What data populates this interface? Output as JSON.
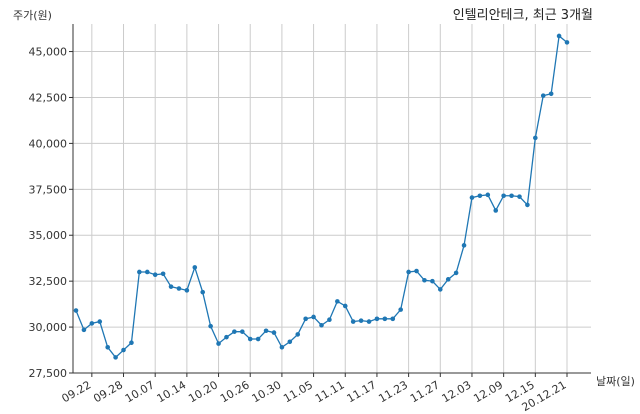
{
  "chart_data": {
    "type": "line",
    "title": "인텔리안테크, 최근 3개월",
    "ylabel": "주가(원)",
    "xlabel": "날짜(일)",
    "ylim": [
      27500,
      46500
    ],
    "yticks": [
      27500,
      30000,
      32500,
      35000,
      37500,
      40000,
      42500,
      45000
    ],
    "ytick_labels": [
      "27,500",
      "30,000",
      "32,500",
      "35,000",
      "37,500",
      "40,000",
      "42,500",
      "45,000"
    ],
    "xtick_labels": [
      "09.22",
      "09.28",
      "10.07",
      "10.14",
      "10.20",
      "10.26",
      "10.30",
      "11.05",
      "11.11",
      "11.17",
      "11.23",
      "11.27",
      "12.03",
      "12.09",
      "12.15",
      "20.12.21"
    ],
    "grid": true,
    "line_color": "#1f77b4",
    "series": [
      {
        "values": [
          30900,
          29850,
          30200,
          30300,
          28900,
          28350,
          28750,
          29150,
          33000,
          33000,
          32850,
          32900,
          32200,
          32100,
          32000,
          33250,
          31900,
          30050,
          29100,
          29450,
          29750,
          29750,
          29350,
          29350,
          29800,
          29700,
          28900,
          29200,
          29600,
          30450,
          30550,
          30100,
          30400,
          31400,
          31150,
          30300,
          30350,
          30300,
          30450,
          30450,
          30450,
          30950,
          33000,
          33050,
          32550,
          32500,
          32050,
          32600,
          32950,
          34450,
          37050,
          37150,
          37200,
          36350,
          37150,
          37150,
          37100,
          36650,
          40300,
          42600,
          42700,
          45850,
          45500
        ]
      }
    ]
  }
}
